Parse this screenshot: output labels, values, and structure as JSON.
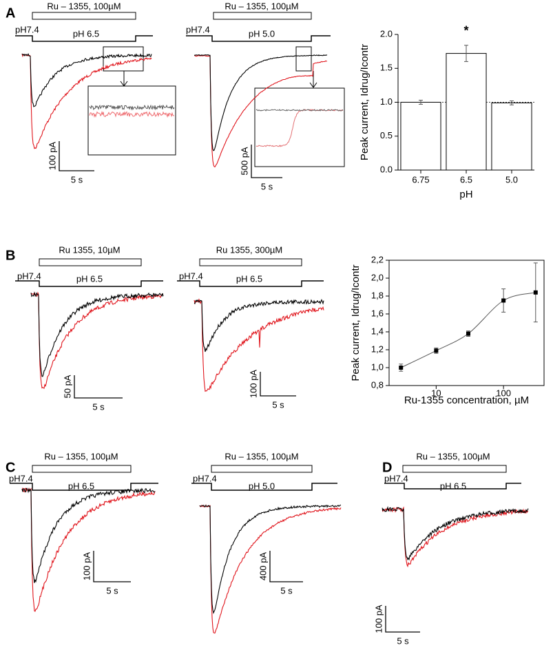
{
  "panel_labels": [
    "A",
    "B",
    "C",
    "D"
  ],
  "traces": [
    {
      "drug": "Ru – 1355, 100µM",
      "ph_start": "pH7.4",
      "ph_end": "pH 6.5",
      "scale_y": "100 pA",
      "scale_x": "5 s"
    },
    {
      "drug": "Ru – 1355,  100µM",
      "ph_start": "pH7.4",
      "ph_end": "pH 5.0",
      "scale_y": "500 pA",
      "scale_x": "5 s"
    },
    {
      "drug": "Ru 1355, 10µM",
      "ph_start": "pH7.4",
      "ph_end": "pH 6.5",
      "scale_y": "50 pA",
      "scale_x": "5 s"
    },
    {
      "drug": "Ru 1355, 300µM",
      "ph_start": "pH7.4",
      "ph_end": "pH 6.5",
      "scale_y": "100 pA",
      "scale_x": "5 s"
    },
    {
      "drug": "Ru – 1355, 100µM",
      "ph_start": "pH7.4",
      "ph_end": "pH 6.5",
      "scale_y": "100 pA",
      "scale_x": "5 s"
    },
    {
      "drug": "Ru – 1355,  100µM",
      "ph_start": "pH7.4",
      "ph_end": "pH 5.0",
      "scale_y": "400 pA",
      "scale_x": "5 s"
    },
    {
      "drug": "Ru – 1355, 100µM",
      "ph_start": "pH7.4",
      "ph_end": "pH 6.5",
      "scale_y": "100 pA",
      "scale_x": "5 s"
    }
  ],
  "chart_data": [
    {
      "type": "bar",
      "categories": [
        "6.75",
        "6.5",
        "5.0"
      ],
      "values": [
        1.0,
        1.72,
        0.99
      ],
      "errors": [
        0.03,
        0.12,
        0.03
      ],
      "color": "#ffffff",
      "ylim": [
        0,
        2
      ],
      "yticks": [
        {
          "value": 0,
          "label": "0.0"
        },
        0.5,
        {
          "value": 1,
          "label": "1.0"
        },
        1.5,
        {
          "value": 2,
          "label": "2.0"
        }
      ],
      "reference_line": 1,
      "ylabel": "Peak current, Idrug/Icontr",
      "xlabel": "pH",
      "annotations": [
        "*"
      ]
    },
    {
      "type": "scatter",
      "x": [
        3,
        10,
        30,
        100,
        300
      ],
      "values": [
        1.0,
        1.19,
        1.38,
        1.75,
        1.84
      ],
      "errors": [
        0.04,
        0.03,
        0.03,
        0.13,
        0.33
      ],
      "color": "#000000",
      "xscale": "log",
      "xlim": [
        2,
        400
      ],
      "xticks": [
        10,
        100
      ],
      "ylim": [
        0.8,
        2.2
      ],
      "yticks": [
        {
          "value": 0.8,
          "label": "0,8"
        },
        {
          "value": 1.0,
          "label": "1,0"
        },
        {
          "value": 1.2,
          "label": "1,2"
        },
        {
          "value": 1.4,
          "label": "1,4"
        },
        {
          "value": 1.6,
          "label": "1,6"
        },
        {
          "value": 1.8,
          "label": "1,8"
        },
        {
          "value": 2.0,
          "label": "2,0"
        },
        {
          "value": 2.2,
          "label": "2,2"
        }
      ],
      "ylabel": "Peak current, Idrug/Icontr",
      "xlabel": "Ru-1355 concentration, µM"
    }
  ]
}
